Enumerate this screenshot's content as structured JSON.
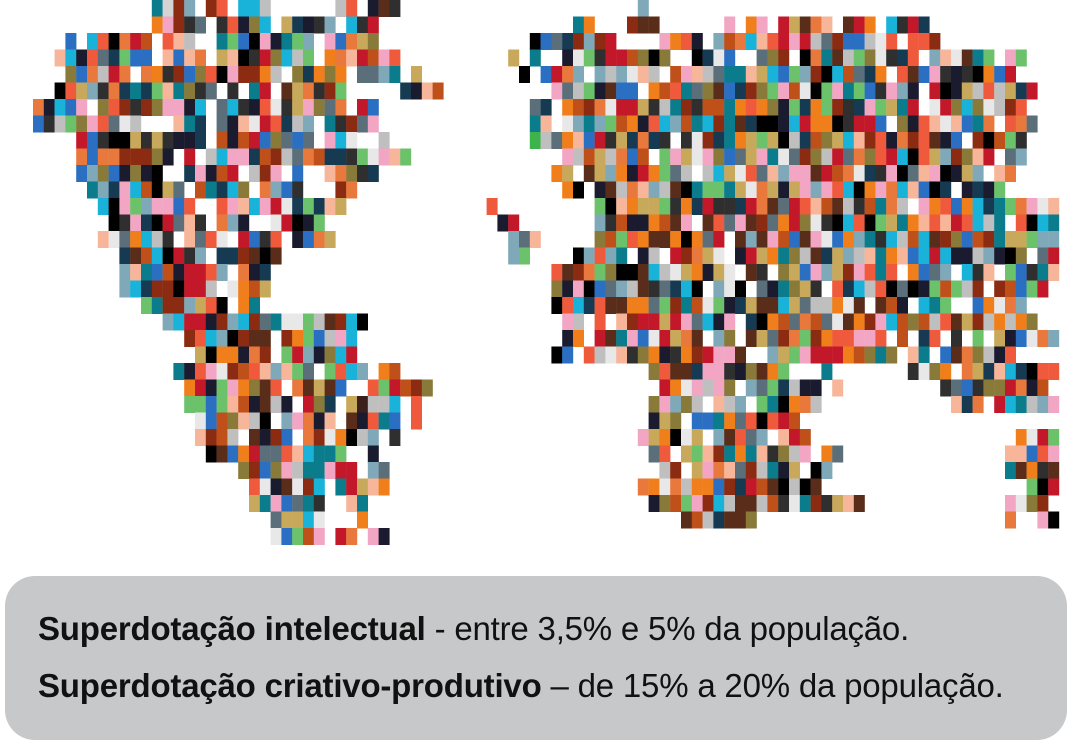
{
  "map": {
    "palette": [
      "#000000",
      "#111111",
      "#1b1b2f",
      "#3b1f1a",
      "#5a2d1a",
      "#7a3a1a",
      "#8b2c12",
      "#a33a12",
      "#c0501a",
      "#d9622b",
      "#e8783c",
      "#f4a07a",
      "#f7b59a",
      "#fa8f70",
      "#f05a3c",
      "#e2231a",
      "#c2182a",
      "#7a1a2a",
      "#f2a6c4",
      "#ec6fa0",
      "#0a7c8c",
      "#0e5a6a",
      "#153a52",
      "#1f4f8f",
      "#2a6fc2",
      "#4d8fd1",
      "#7fa8b8",
      "#9aa7ad",
      "#5b6f7a",
      "#3a4a55",
      "#2f2f2f",
      "#555555",
      "#8a7a3a",
      "#6b5a1a",
      "#c8a85a",
      "#f5a623",
      "#f07e1a",
      "#3cb44b",
      "#6cc26a",
      "#2a8a3a",
      "#19b2d8",
      "#d4d4d4",
      "#bfbfbf",
      "#a9a9a9",
      "#e8e8e8",
      "#8c8c8c",
      "#ffffff"
    ]
  },
  "info": {
    "line1_bold": "Superdotação intelectual",
    "line1_rest": " - entre 3,5% e 5% da população.",
    "line2_bold": "Superdotação criativo-produtivo",
    "line2_rest": " – de 15% a 20% da população."
  }
}
